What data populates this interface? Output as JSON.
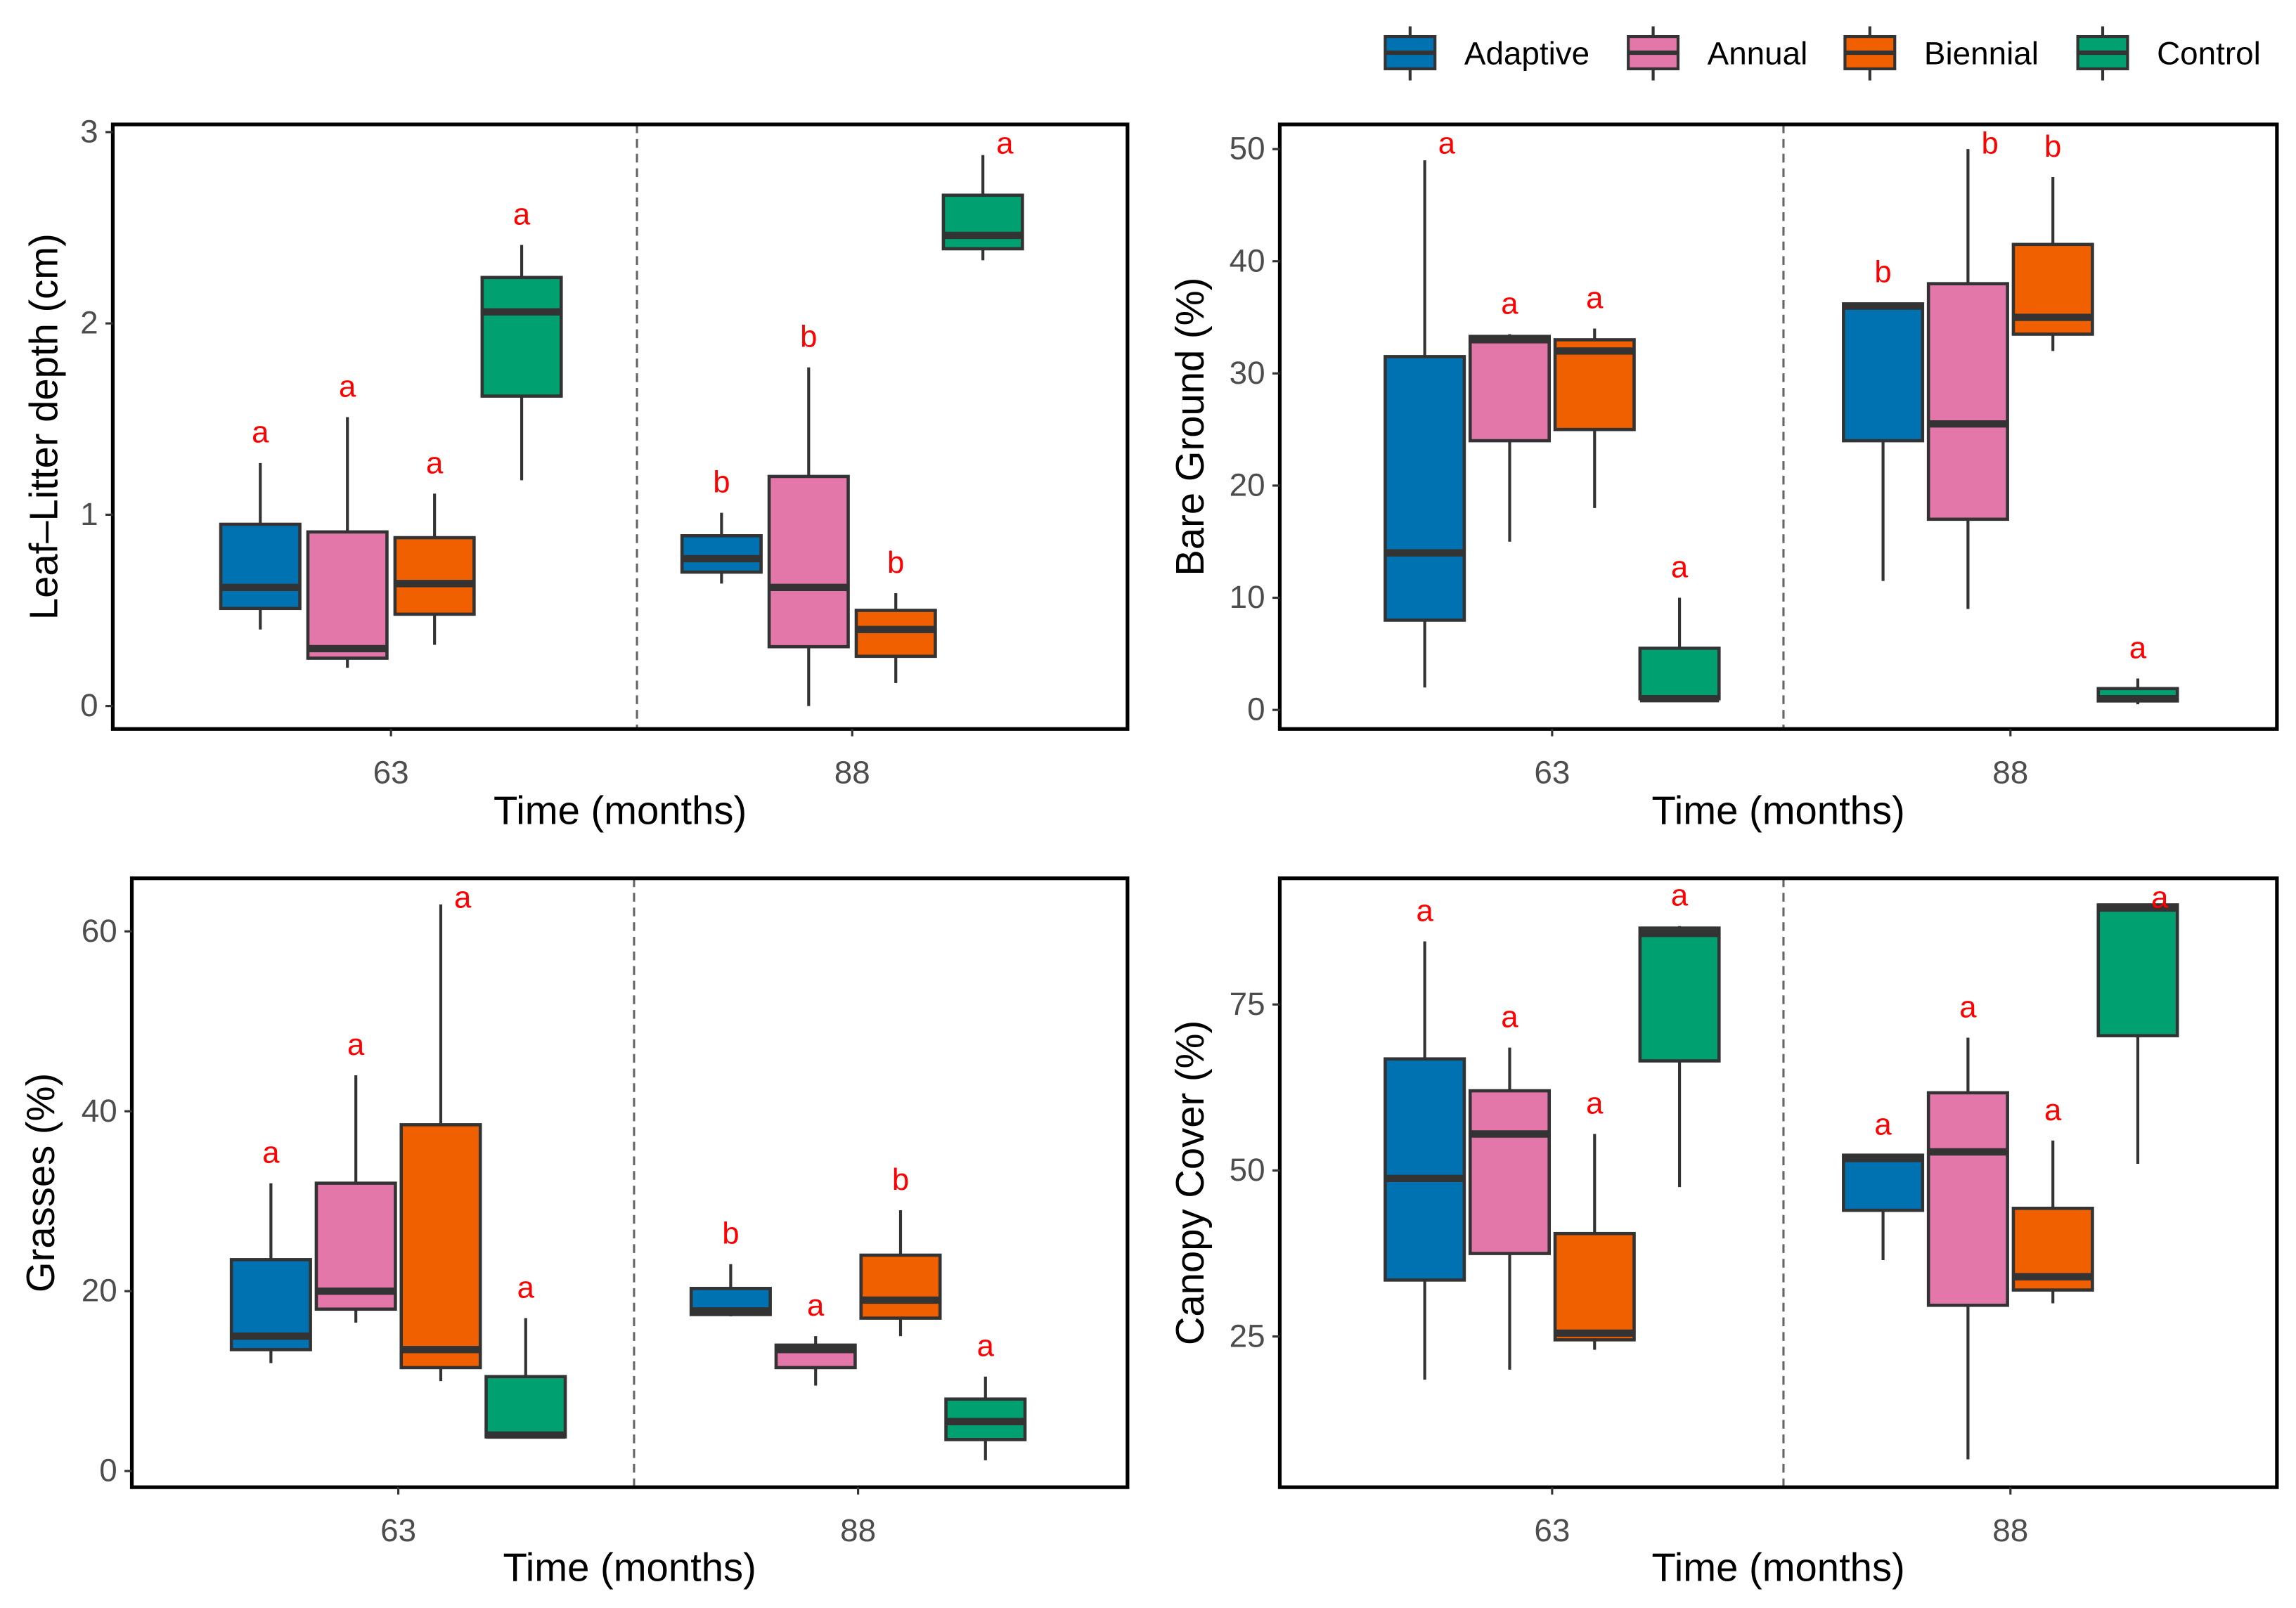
{
  "legend": {
    "position": "top-right",
    "items": [
      {
        "label": "Adaptive",
        "color": "#0072B2"
      },
      {
        "label": "Annual",
        "color": "#E377A9"
      },
      {
        "label": "Biennial",
        "color": "#F06000"
      },
      {
        "label": "Control",
        "color": "#00A070"
      }
    ]
  },
  "chart_data": [
    {
      "type": "box",
      "ylabel": "Leaf–Litter depth (cm)",
      "xlabel": "Time (months)",
      "categories": [
        "63",
        "88"
      ],
      "ylim": [
        -0.12,
        3.04
      ],
      "yticks": [
        0,
        1,
        2,
        3
      ],
      "grid": false,
      "series": [
        {
          "name": "Adaptive",
          "boxes": [
            [
              0.4,
              0.51,
              0.62,
              0.95,
              1.27
            ],
            [
              0.64,
              0.7,
              0.77,
              0.89,
              1.01
            ]
          ],
          "letters": [
            "a",
            "b"
          ]
        },
        {
          "name": "Annual",
          "boxes": [
            [
              0.2,
              0.25,
              0.3,
              0.91,
              1.51
            ],
            [
              0.0,
              0.31,
              0.62,
              1.2,
              1.77
            ]
          ],
          "letters": [
            "a",
            "b"
          ]
        },
        {
          "name": "Biennial",
          "boxes": [
            [
              0.32,
              0.48,
              0.64,
              0.88,
              1.11
            ],
            [
              0.12,
              0.26,
              0.4,
              0.5,
              0.59
            ]
          ],
          "letters": [
            "a",
            "b"
          ]
        },
        {
          "name": "Control",
          "boxes": [
            [
              1.18,
              1.62,
              2.06,
              2.24,
              2.41
            ],
            [
              2.33,
              2.39,
              2.46,
              2.67,
              2.88
            ]
          ],
          "letters": [
            "a",
            "a"
          ]
        }
      ]
    },
    {
      "type": "box",
      "ylabel": "Bare Ground (%)",
      "xlabel": "Time (months)",
      "categories": [
        "63",
        "88"
      ],
      "ylim": [
        -1.7,
        52.2
      ],
      "yticks": [
        0,
        10,
        20,
        30,
        40,
        50
      ],
      "grid": false,
      "series": [
        {
          "name": "Adaptive",
          "boxes": [
            [
              2,
              8,
              14,
              31.5,
              49
            ],
            [
              11.5,
              24,
              36,
              36.2,
              36.3
            ]
          ],
          "letters": [
            "a",
            "b"
          ]
        },
        {
          "name": "Annual",
          "boxes": [
            [
              15,
              24,
              33,
              33.3,
              33.5
            ],
            [
              9,
              17,
              25.5,
              38,
              50
            ]
          ],
          "letters": [
            "a",
            "b"
          ]
        },
        {
          "name": "Biennial",
          "boxes": [
            [
              18,
              25,
              32,
              33,
              34
            ],
            [
              32,
              33.5,
              35,
              41.5,
              47.5
            ]
          ],
          "letters": [
            "a",
            "b"
          ]
        },
        {
          "name": "Control",
          "boxes": [
            [
              0.8,
              1,
              1,
              5.5,
              10
            ],
            [
              0.5,
              0.8,
              1,
              1.9,
              2.8
            ]
          ],
          "letters": [
            "a",
            "a"
          ]
        }
      ]
    },
    {
      "type": "box",
      "ylabel": "Grasses (%)",
      "xlabel": "Time (months)",
      "categories": [
        "63",
        "88"
      ],
      "ylim": [
        -1.8,
        65.9
      ],
      "yticks": [
        0,
        20,
        40,
        60
      ],
      "grid": false,
      "series": [
        {
          "name": "Adaptive",
          "boxes": [
            [
              12,
              13.5,
              15,
              23.5,
              32
            ],
            [
              17.2,
              17.4,
              17.8,
              20.3,
              23
            ]
          ],
          "letters": [
            "a",
            "b"
          ]
        },
        {
          "name": "Annual",
          "boxes": [
            [
              16.5,
              18,
              20,
              32,
              44
            ],
            [
              9.5,
              11.5,
              13.5,
              14,
              15
            ]
          ],
          "letters": [
            "a",
            "a"
          ]
        },
        {
          "name": "Biennial",
          "boxes": [
            [
              10,
              11.5,
              13.5,
              38.5,
              63
            ],
            [
              15,
              17,
              19,
              24,
              29
            ]
          ],
          "letters": [
            "a",
            "b"
          ]
        },
        {
          "name": "Control",
          "boxes": [
            [
              3.8,
              3.8,
              4,
              10.5,
              17
            ],
            [
              1.2,
              3.5,
              5.5,
              8,
              10.5
            ]
          ],
          "letters": [
            "a",
            "a"
          ]
        }
      ]
    },
    {
      "type": "box",
      "ylabel": "Canopy Cover (%)",
      "xlabel": "Time (months)",
      "categories": [
        "63",
        "88"
      ],
      "ylim": [
        2.3,
        94
      ],
      "yticks": [
        25,
        50,
        75
      ],
      "grid": false,
      "series": [
        {
          "name": "Adaptive",
          "boxes": [
            [
              18.5,
              33.5,
              48.8,
              66.8,
              84.5
            ],
            [
              36.5,
              44,
              51.8,
              52.3,
              52.3
            ]
          ],
          "letters": [
            "a",
            "a"
          ]
        },
        {
          "name": "Annual",
          "boxes": [
            [
              20,
              37.5,
              55.5,
              62,
              68.5
            ],
            [
              6.5,
              29.7,
              52.8,
              61.7,
              70
            ]
          ],
          "letters": [
            "a",
            "a"
          ]
        },
        {
          "name": "Biennial",
          "boxes": [
            [
              23,
              24.5,
              25.5,
              40.5,
              55.5
            ],
            [
              30,
              32,
              34,
              44.3,
              54.5
            ]
          ],
          "letters": [
            "a",
            "a"
          ]
        },
        {
          "name": "Control",
          "boxes": [
            [
              47.5,
              66.5,
              85.7,
              86.5,
              86.8
            ],
            [
              51,
              70.3,
              89.5,
              90,
              90
            ]
          ],
          "letters": [
            "a",
            "a"
          ]
        }
      ]
    }
  ]
}
